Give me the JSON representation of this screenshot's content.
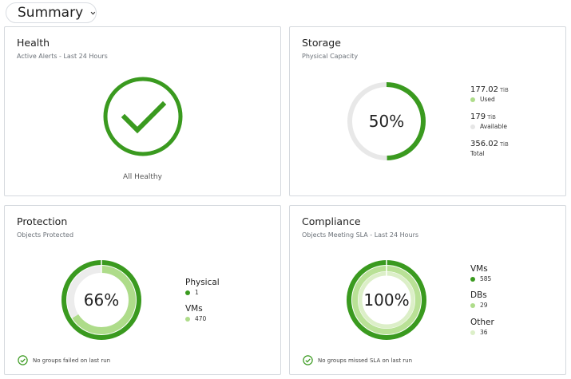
{
  "header": {
    "title": "Summary"
  },
  "colors": {
    "dark_green": "#3a9a1f",
    "light_green": "#aedc8a",
    "lighter_green": "#cfe9b5",
    "pale": "#e6f0d8",
    "gray": "#e8e8e8"
  },
  "health": {
    "title": "Health",
    "subtitle": "Active Alerts - Last 24 Hours",
    "status": "All Healthy",
    "icon": "check-circle-icon"
  },
  "storage": {
    "title": "Storage",
    "subtitle": "Physical Capacity",
    "percent_label": "50%",
    "percent": 0.497,
    "used": {
      "value": "177.02",
      "unit": "TiB",
      "label": "Used"
    },
    "available": {
      "value": "179",
      "unit": "TiB",
      "label": "Available"
    },
    "total": {
      "value": "356.02",
      "unit": "TiB",
      "label": "Total"
    }
  },
  "protection": {
    "title": "Protection",
    "subtitle": "Objects Protected",
    "percent_label": "66%",
    "outer_fraction": 1.0,
    "inner_fraction": 0.66,
    "legend": [
      {
        "name": "Physical",
        "value": "1"
      },
      {
        "name": "VMs",
        "value": "470"
      }
    ],
    "footer": "No groups failed on last run"
  },
  "compliance": {
    "title": "Compliance",
    "subtitle": "Objects Meeting SLA - Last 24 Hours",
    "percent_label": "100%",
    "legend": [
      {
        "name": "VMs",
        "value": "585"
      },
      {
        "name": "DBs",
        "value": "29"
      },
      {
        "name": "Other",
        "value": "36"
      }
    ],
    "footer": "No groups missed SLA on last run"
  }
}
